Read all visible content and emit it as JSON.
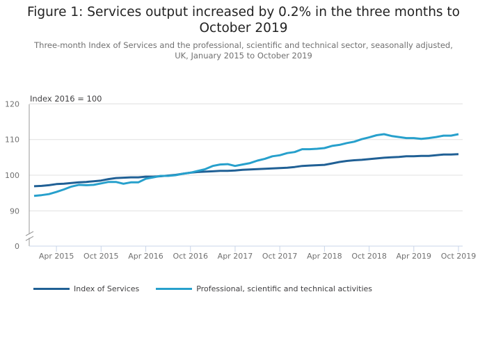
{
  "title": "Figure 1: Services output increased by 0.2% in the three months to October 2019",
  "subtitle": "Three-month Index of Services and the professional, scientific and technical sector, seasonally adjusted, UK, January 2015 to October 2019",
  "chart_data": {
    "type": "line",
    "ylabel": "Index 2016 = 100",
    "ylim": [
      85,
      120
    ],
    "yticks": [
      "120",
      "110",
      "100",
      "90",
      "0"
    ],
    "y_axis_break": true,
    "xticks": [
      "Apr 2015",
      "Oct 2015",
      "Apr 2016",
      "Oct 2016",
      "Apr 2017",
      "Oct 2017",
      "Apr 2018",
      "Oct 2018",
      "Apr 2019",
      "Oct 2019"
    ],
    "x_start": "Jan 2015",
    "x_end": "Oct 2019",
    "grid": true,
    "legend_position": "bottom-left",
    "series": [
      {
        "name": "Index of Services",
        "color": "#206095",
        "values": [
          96.9,
          97.0,
          97.2,
          97.5,
          97.6,
          97.8,
          98.0,
          98.1,
          98.3,
          98.5,
          98.9,
          99.2,
          99.3,
          99.4,
          99.4,
          99.6,
          99.6,
          99.7,
          99.9,
          100.1,
          100.4,
          100.7,
          100.9,
          101.0,
          101.1,
          101.2,
          101.2,
          101.3,
          101.5,
          101.6,
          101.7,
          101.8,
          101.9,
          102.0,
          102.1,
          102.3,
          102.6,
          102.7,
          102.8,
          102.9,
          103.3,
          103.7,
          104.0,
          104.2,
          104.3,
          104.5,
          104.7,
          104.9,
          105.0,
          105.1,
          105.3,
          105.3,
          105.4,
          105.4,
          105.6,
          105.8,
          105.8,
          105.9
        ]
      },
      {
        "name": "Professional, scientific and technical activities",
        "color": "#27a0cc",
        "values": [
          94.2,
          94.4,
          94.7,
          95.3,
          96.0,
          96.8,
          97.3,
          97.2,
          97.3,
          97.7,
          98.1,
          98.1,
          97.6,
          98.0,
          98.0,
          99.0,
          99.4,
          99.8,
          99.8,
          100.0,
          100.4,
          100.7,
          101.2,
          101.7,
          102.6,
          103.0,
          103.1,
          102.6,
          103.0,
          103.4,
          104.1,
          104.6,
          105.3,
          105.6,
          106.2,
          106.5,
          107.3,
          107.3,
          107.4,
          107.6,
          108.2,
          108.5,
          109.0,
          109.4,
          110.1,
          110.6,
          111.2,
          111.5,
          111.0,
          110.7,
          110.4,
          110.4,
          110.2,
          110.4,
          110.7,
          111.1,
          111.1,
          111.5
        ]
      }
    ]
  }
}
